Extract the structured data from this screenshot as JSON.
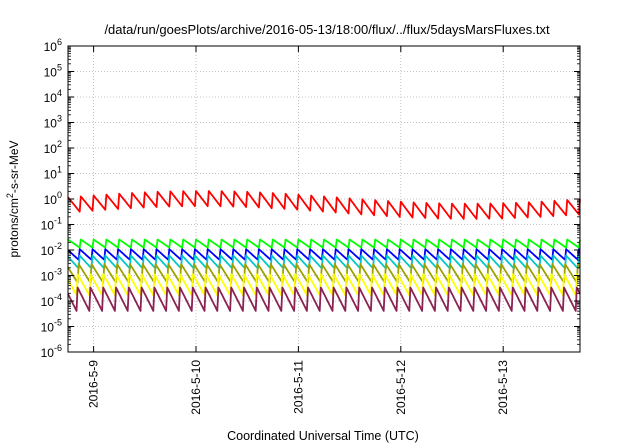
{
  "chart_data": {
    "type": "line",
    "title": "/data/run/goesPlots/archive/2016-05-13/18:00/flux/../flux/5daysMarsFluxes.txt",
    "xlabel": "Coordinated Universal Time (UTC)",
    "ylabel": {
      "prefix": "protons/cm",
      "sup": "2",
      "suffix": "-s-sr-MeV"
    },
    "y_scale": "log",
    "ylim": [
      1e-06,
      1000000.0
    ],
    "y_ticks": [
      {
        "value": 1e-06,
        "base": "10",
        "exp": "-6"
      },
      {
        "value": 1e-05,
        "base": "10",
        "exp": "-5"
      },
      {
        "value": 0.0001,
        "base": "10",
        "exp": "-4"
      },
      {
        "value": 0.001,
        "base": "10",
        "exp": "-3"
      },
      {
        "value": 0.01,
        "base": "10",
        "exp": "-2"
      },
      {
        "value": 0.1,
        "base": "10",
        "exp": "-1"
      },
      {
        "value": 1,
        "base": "10",
        "exp": "0"
      },
      {
        "value": 10,
        "base": "10",
        "exp": "1"
      },
      {
        "value": 100,
        "base": "10",
        "exp": "2"
      },
      {
        "value": 1000,
        "base": "10",
        "exp": "3"
      },
      {
        "value": 10000,
        "base": "10",
        "exp": "4"
      },
      {
        "value": 100000,
        "base": "10",
        "exp": "5"
      },
      {
        "value": 1000000,
        "base": "10",
        "exp": "6"
      }
    ],
    "xlim": [
      "2016-05-08T18:00",
      "2016-05-13T18:00"
    ],
    "x_ticks": [
      "2016-5-9",
      "2016-5-10",
      "2016-5-11",
      "2016-5-12",
      "2016-5-13"
    ],
    "grid": true,
    "series": [
      {
        "color": "#ff0000",
        "period_hours": 3,
        "level": 0.55,
        "amplitude_decades": 0.65,
        "drift_decades": 0.25
      },
      {
        "color": "#00ff00",
        "period_hours": 3,
        "level": 0.018,
        "amplitude_decades": 0.35,
        "drift_decades": 0.0
      },
      {
        "color": "#0000ff",
        "period_hours": 3,
        "level": 0.0065,
        "amplitude_decades": 0.45,
        "drift_decades": 0.0
      },
      {
        "color": "#00c8c8",
        "period_hours": 3,
        "level": 0.0035,
        "amplitude_decades": 0.55,
        "drift_decades": 0.0
      },
      {
        "color": "#a0a000",
        "period_hours": 3,
        "level": 0.0012,
        "amplitude_decades": 0.8,
        "drift_decades": 0.0
      },
      {
        "color": "#ffff00",
        "period_hours": 3,
        "level": 0.0004,
        "amplitude_decades": 0.9,
        "drift_decades": 0.0
      },
      {
        "color": "#8b2252",
        "period_hours": 3,
        "level": 0.00012,
        "amplitude_decades": 1.0,
        "drift_decades": 0.0
      }
    ]
  }
}
